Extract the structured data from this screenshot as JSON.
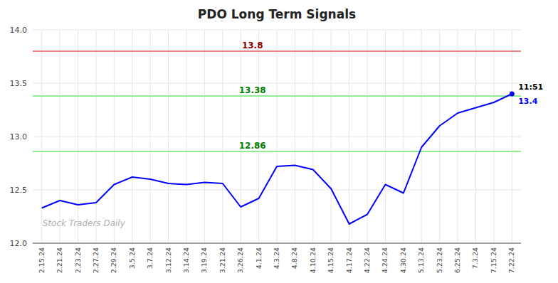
{
  "chart_data": {
    "type": "line",
    "title": "PDO Long Term Signals",
    "categories": [
      "2.15.24",
      "2.21.24",
      "2.23.24",
      "2.27.24",
      "2.29.24",
      "3.5.24",
      "3.7.24",
      "3.12.24",
      "3.14.24",
      "3.19.24",
      "3.21.24",
      "3.26.24",
      "4.1.24",
      "4.3.24",
      "4.8.24",
      "4.10.24",
      "4.15.24",
      "4.17.24",
      "4.22.24",
      "4.24.24",
      "4.30.24",
      "5.13.24",
      "5.23.24",
      "6.25.24",
      "7.3.24",
      "7.15.24",
      "7.22.24"
    ],
    "values": [
      12.33,
      12.4,
      12.36,
      12.38,
      12.55,
      12.62,
      12.6,
      12.56,
      12.55,
      12.57,
      12.56,
      12.34,
      12.42,
      12.72,
      12.73,
      12.69,
      12.51,
      12.18,
      12.27,
      12.55,
      12.47,
      12.9,
      13.1,
      13.22,
      13.27,
      13.32,
      13.4
    ],
    "color": "blue",
    "ylim": [
      12.0,
      14.0
    ],
    "yticks": [
      {
        "value": 12.0,
        "label": "12.0"
      },
      12.5,
      {
        "value": 13.0,
        "label": "13.0"
      },
      13.5,
      {
        "value": 14.0,
        "label": "14.0"
      }
    ],
    "grid": true,
    "reference_lines": [
      {
        "value": 13.8,
        "label": "13.8",
        "color": "#f08080",
        "label_color": "#8b0000"
      },
      {
        "value": 13.38,
        "label": "13.38",
        "color": "#90ee90",
        "label_color": "green"
      },
      {
        "value": 12.86,
        "label": "12.86",
        "color": "#90ee90",
        "label_color": "green"
      }
    ],
    "annotations": [
      {
        "text": "11:51",
        "color": "black"
      },
      {
        "text": "13.4",
        "color": "blue"
      }
    ],
    "watermark": "Stock Traders Daily"
  }
}
